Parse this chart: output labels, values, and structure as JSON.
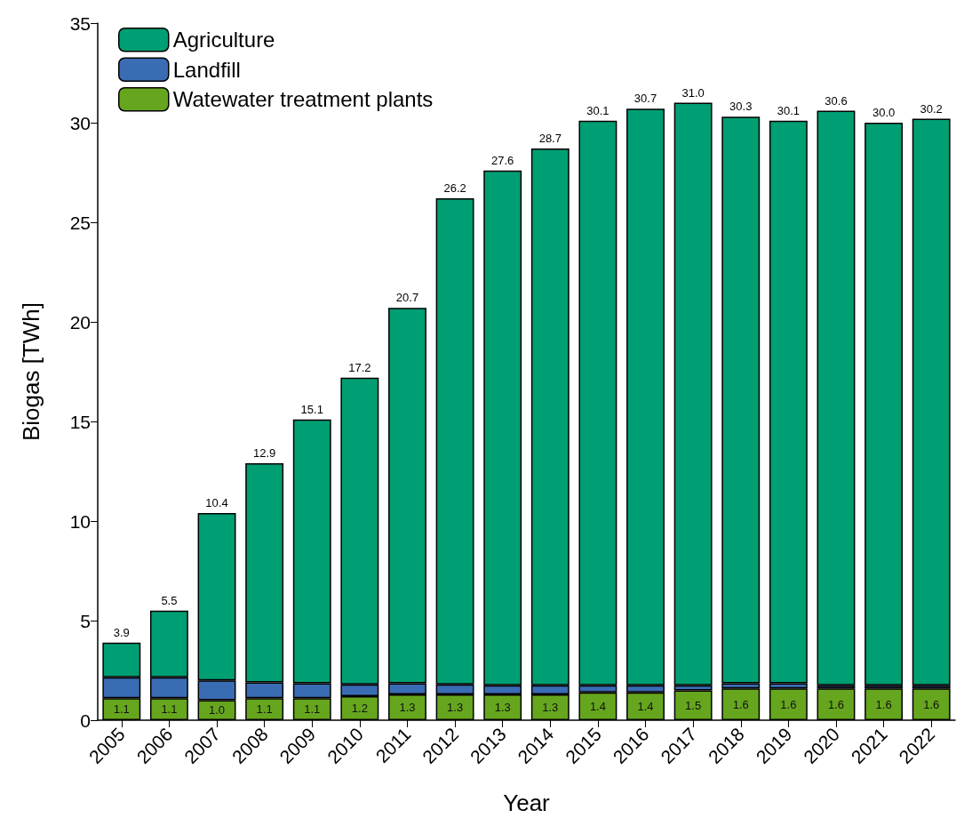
{
  "chart_data": {
    "type": "bar",
    "stacked": true,
    "xlabel": "Year",
    "ylabel": "Biogas [TWh]",
    "categories": [
      "2005",
      "2006",
      "2007",
      "2008",
      "2009",
      "2010",
      "2011",
      "2012",
      "2013",
      "2014",
      "2015",
      "2016",
      "2017",
      "2018",
      "2019",
      "2020",
      "2021",
      "2022"
    ],
    "series": [
      {
        "name": "Watewater treatment plants",
        "color": "#66a61e",
        "values": [
          1.1,
          1.1,
          1.0,
          1.1,
          1.1,
          1.2,
          1.3,
          1.3,
          1.3,
          1.3,
          1.4,
          1.4,
          1.5,
          1.6,
          1.6,
          1.6,
          1.6,
          1.6
        ],
        "value_labels": [
          "1.1",
          "1.1",
          "1.0",
          "1.1",
          "1.1",
          "1.2",
          "1.3",
          "1.3",
          "1.3",
          "1.3",
          "1.4",
          "1.4",
          "1.5",
          "1.6",
          "1.6",
          "1.6",
          "1.6",
          "1.6"
        ]
      },
      {
        "name": "Landfill",
        "color": "#3a6cb4",
        "values": [
          1.05,
          1.05,
          1.0,
          0.8,
          0.75,
          0.6,
          0.55,
          0.5,
          0.45,
          0.45,
          0.35,
          0.35,
          0.25,
          0.25,
          0.25,
          0.15,
          0.15,
          0.15
        ]
      },
      {
        "name": "Agriculture",
        "color": "#009e73",
        "values": [
          1.75,
          3.35,
          8.4,
          11.0,
          13.25,
          15.4,
          18.85,
          24.4,
          25.85,
          26.95,
          28.35,
          28.95,
          29.25,
          28.45,
          28.25,
          28.85,
          28.25,
          28.45
        ]
      }
    ],
    "totals": [
      "3.9",
      "5.5",
      "10.4",
      "12.9",
      "15.1",
      "17.2",
      "20.7",
      "26.2",
      "27.6",
      "28.7",
      "30.1",
      "30.7",
      "31.0",
      "30.3",
      "30.1",
      "30.6",
      "30.0",
      "30.2"
    ],
    "ylim": [
      0,
      35
    ],
    "yticks": [
      0,
      5,
      10,
      15,
      20,
      25,
      30,
      35
    ],
    "grid": false,
    "legend": "top left"
  }
}
